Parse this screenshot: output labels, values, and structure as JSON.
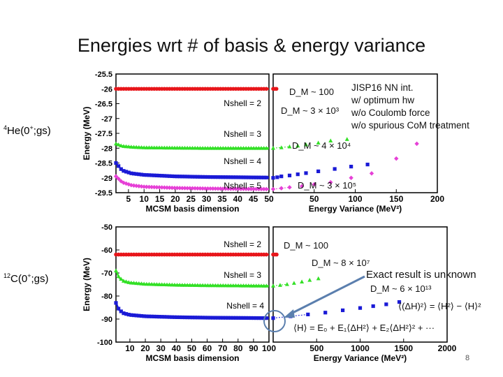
{
  "slide": {
    "title": "Energies wrt # of basis & energy variance",
    "page_number": "8",
    "nuclei": [
      {
        "sym": "4",
        "rest": "He(0",
        "sup": "+",
        "tail": ";gs)"
      },
      {
        "sym": "12",
        "rest": "C(0",
        "sup": "+",
        "tail": ";gs)"
      }
    ]
  },
  "legend": {
    "lines": [
      "JISP16 NN int.",
      "w/ optimum hw",
      "w/o Coulomb force",
      "w/o spurious CoM treatment"
    ]
  },
  "annotations": {
    "exact_unknown": "Exact result is unknown",
    "formula_variance": "⟨(ΔH)²⟩ = ⟨H²⟩ − ⟨H⟩²",
    "formula_extrap": "⟨H⟩ = E₀ + E₁⟨ΔH²⟩ + E₂⟨ΔH²⟩² + ···"
  },
  "colors": {
    "nshell2": "#e8161b",
    "nshell3": "#33e026",
    "nshell4": "#1a1ad6",
    "nshell5": "#e640d6"
  },
  "chart_data": [
    {
      "type": "line",
      "panel": "He4 left",
      "xlabel": "MCSM basis dimension",
      "ylabel": "Energy (MeV)",
      "xlim": [
        1,
        50
      ],
      "ylim": [
        -29.5,
        -25.5
      ],
      "xticks": [
        "5",
        "10",
        "15",
        "20",
        "25",
        "30",
        "35",
        "40",
        "45",
        "50"
      ],
      "yticks": [
        "-25.5",
        "-26",
        "-26.5",
        "-27",
        "-27.5",
        "-28",
        "-28.5",
        "-29",
        "-29.5"
      ],
      "series": [
        {
          "name": "Nshell = 2",
          "color_key": "nshell2",
          "x": [
            1,
            10,
            20,
            30,
            40,
            50
          ],
          "y": [
            -26.0,
            -26.0,
            -26.0,
            -26.0,
            -26.0,
            -26.0
          ]
        },
        {
          "name": "Nshell = 3",
          "color_key": "nshell3",
          "x": [
            1,
            3,
            6,
            10,
            20,
            30,
            40,
            50
          ],
          "y": [
            -27.85,
            -27.93,
            -27.96,
            -27.98,
            -27.99,
            -28.0,
            -28.0,
            -28.0
          ]
        },
        {
          "name": "Nshell = 4",
          "color_key": "nshell4",
          "x": [
            1,
            3,
            6,
            10,
            20,
            30,
            40,
            50
          ],
          "y": [
            -28.5,
            -28.75,
            -28.85,
            -28.9,
            -28.95,
            -28.97,
            -28.98,
            -28.99
          ]
        },
        {
          "name": "Nshell = 5",
          "color_key": "nshell5",
          "x": [
            1,
            3,
            6,
            10,
            20,
            30,
            40,
            50
          ],
          "y": [
            -28.95,
            -29.15,
            -29.25,
            -29.3,
            -29.34,
            -29.36,
            -29.37,
            -29.38
          ]
        }
      ]
    },
    {
      "type": "scatter",
      "panel": "He4 right",
      "xlabel": "Energy Variance (MeV²)",
      "xlim": [
        0,
        200
      ],
      "ylim": [
        -29.5,
        -25.5
      ],
      "xticks": [
        "50",
        "100",
        "150",
        "200"
      ],
      "series": [
        {
          "name": "Nshell = 2",
          "color_key": "nshell2",
          "label": "D_M ~ 100",
          "x": [
            0,
            2,
            4
          ],
          "y": [
            -26.0,
            -26.0,
            -26.0
          ]
        },
        {
          "name": "Nshell = 3",
          "color_key": "nshell3",
          "label": "D_M ~ 3 × 10³",
          "x": [
            0,
            10,
            20,
            30,
            40,
            55,
            70,
            90
          ],
          "y": [
            -28.0,
            -27.98,
            -27.95,
            -27.92,
            -27.88,
            -27.82,
            -27.75,
            -27.7
          ]
        },
        {
          "name": "Nshell = 4",
          "color_key": "nshell4",
          "label": "D_M ~ 4 × 10⁴",
          "x": [
            0,
            5,
            10,
            20,
            30,
            40,
            55,
            75,
            95,
            115
          ],
          "y": [
            -29.0,
            -28.98,
            -28.95,
            -28.92,
            -28.88,
            -28.84,
            -28.78,
            -28.7,
            -28.62,
            -28.55
          ]
        },
        {
          "name": "Nshell = 5",
          "color_key": "nshell5",
          "label": "D_M ~ 3 × 10⁵",
          "x": [
            0,
            10,
            20,
            35,
            50,
            70,
            95,
            120,
            150,
            175
          ],
          "y": [
            -29.38,
            -29.35,
            -29.32,
            -29.28,
            -29.22,
            -29.15,
            -29.0,
            -28.85,
            -28.35,
            -27.85
          ]
        }
      ]
    },
    {
      "type": "line",
      "panel": "C12 left",
      "xlabel": "MCSM basis dimension",
      "ylabel": "Energy (MeV)",
      "xlim": [
        1,
        100
      ],
      "ylim": [
        -100,
        -50
      ],
      "xticks": [
        "10",
        "20",
        "30",
        "40",
        "50",
        "60",
        "70",
        "80",
        "90",
        "100"
      ],
      "yticks": [
        "-50",
        "-60",
        "-70",
        "-80",
        "-90",
        "-100"
      ],
      "series": [
        {
          "name": "Nshell = 2",
          "color_key": "nshell2",
          "x": [
            1,
            20,
            40,
            60,
            80,
            100
          ],
          "y": [
            -62,
            -62,
            -62,
            -62,
            -62,
            -62
          ]
        },
        {
          "name": "Nshell = 3",
          "color_key": "nshell3",
          "x": [
            1,
            3,
            6,
            10,
            20,
            40,
            60,
            80,
            100
          ],
          "y": [
            -69,
            -72,
            -73.5,
            -74.2,
            -74.8,
            -75.2,
            -75.4,
            -75.5,
            -75.6
          ]
        },
        {
          "name": "Nshell = 4",
          "color_key": "nshell4",
          "x": [
            1,
            3,
            6,
            10,
            20,
            40,
            60,
            80,
            100
          ],
          "y": [
            -83,
            -86,
            -87.5,
            -88.2,
            -88.8,
            -89.2,
            -89.4,
            -89.5,
            -89.6
          ]
        }
      ]
    },
    {
      "type": "scatter",
      "panel": "C12 right",
      "xlabel": "Energy Variance (MeV²)",
      "xlim": [
        0,
        2000
      ],
      "ylim": [
        -100,
        -50
      ],
      "xticks": [
        "500",
        "1000",
        "1500",
        "2000"
      ],
      "series": [
        {
          "name": "Nshell = 2",
          "color_key": "nshell2",
          "label": "D_M ~ 100",
          "x": [
            0,
            20,
            40
          ],
          "y": [
            -62,
            -62,
            -62
          ]
        },
        {
          "name": "Nshell = 3",
          "color_key": "nshell3",
          "label": "D_M ~ 8 × 10⁷",
          "x": [
            0,
            80,
            160,
            240,
            330,
            420,
            520
          ],
          "y": [
            -75.6,
            -75.3,
            -74.9,
            -74.4,
            -73.8,
            -73.1,
            -72.4
          ]
        },
        {
          "name": "Nshell = 4",
          "color_key": "nshell4",
          "label": "D_M ~ 6 × 10¹³",
          "x": [
            0,
            200,
            400,
            600,
            800,
            1000,
            1150,
            1300,
            1450
          ],
          "y": [
            -89.6,
            -88.8,
            -88.0,
            -87.2,
            -86.2,
            -85.2,
            -84.4,
            -83.6,
            -82.6
          ]
        }
      ]
    }
  ]
}
